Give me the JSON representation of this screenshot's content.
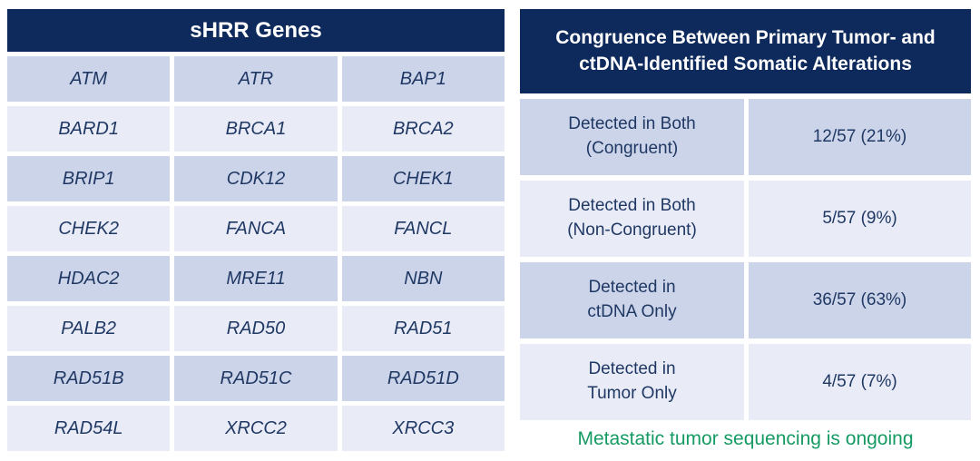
{
  "left_table": {
    "title": "sHRR Genes",
    "gene_rows": [
      [
        "ATM",
        "ATR",
        "BAP1"
      ],
      [
        "BARD1",
        "BRCA1",
        "BRCA2"
      ],
      [
        "BRIP1",
        "CDK12",
        "CHEK1"
      ],
      [
        "CHEK2",
        "FANCA",
        "FANCL"
      ],
      [
        "HDAC2",
        "MRE11",
        "NBN"
      ],
      [
        "PALB2",
        "RAD50",
        "RAD51"
      ],
      [
        "RAD51B",
        "RAD51C",
        "RAD51D"
      ],
      [
        "RAD54L",
        "XRCC2",
        "XRCC3"
      ]
    ]
  },
  "right_table": {
    "title_lines": [
      "Congruence Between Primary Tumor- and",
      "ctDNA-Identified Somatic Alterations"
    ],
    "rows": [
      {
        "label_lines": [
          "Detected in Both",
          "(Congruent)"
        ],
        "value": "12/57 (21%)"
      },
      {
        "label_lines": [
          "Detected in Both",
          "(Non-Congruent)"
        ],
        "value": "5/57 (9%)"
      },
      {
        "label_lines": [
          "Detected in",
          "ctDNA Only"
        ],
        "value": "36/57 (63%)"
      },
      {
        "label_lines": [
          "Detected in",
          "Tumor Only"
        ],
        "value": "4/57 (7%)"
      }
    ],
    "footnote": "Metastatic tumor sequencing is ongoing"
  },
  "colors": {
    "header_navy": "#0E2A5C",
    "row_dark": "#CCD4E9",
    "row_light": "#E9EBF6",
    "text_navy": "#1F3864",
    "footnote_green": "#169A63"
  }
}
